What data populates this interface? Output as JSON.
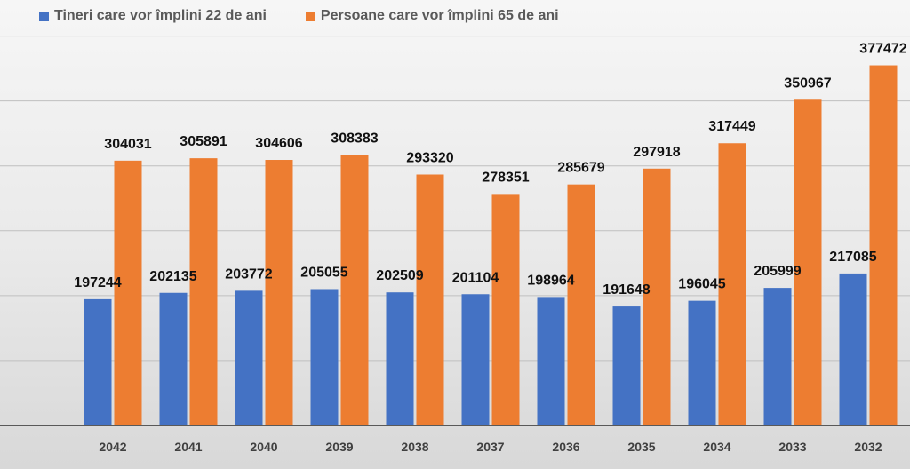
{
  "chart_data": {
    "type": "bar",
    "title": "",
    "xlabel": "",
    "ylabel": "",
    "ylim": [
      100000,
      410000
    ],
    "grid": true,
    "legend_position": "top-left",
    "categories": [
      "2042",
      "2041",
      "2040",
      "2039",
      "2038",
      "2037",
      "2036",
      "2035",
      "2034",
      "2033",
      "2032"
    ],
    "series": [
      {
        "name": "Tineri care vor împlini 22 de ani",
        "color": "#4472C4",
        "values": [
          197244,
          202135,
          203772,
          205055,
          202509,
          201104,
          198964,
          191648,
          196045,
          205999,
          217085
        ]
      },
      {
        "name": "Persoane care vor împlini 65 de ani",
        "color": "#ED7D31",
        "values": [
          304031,
          305891,
          304606,
          308383,
          293320,
          278351,
          285679,
          297918,
          317449,
          350967,
          377472
        ]
      }
    ]
  }
}
